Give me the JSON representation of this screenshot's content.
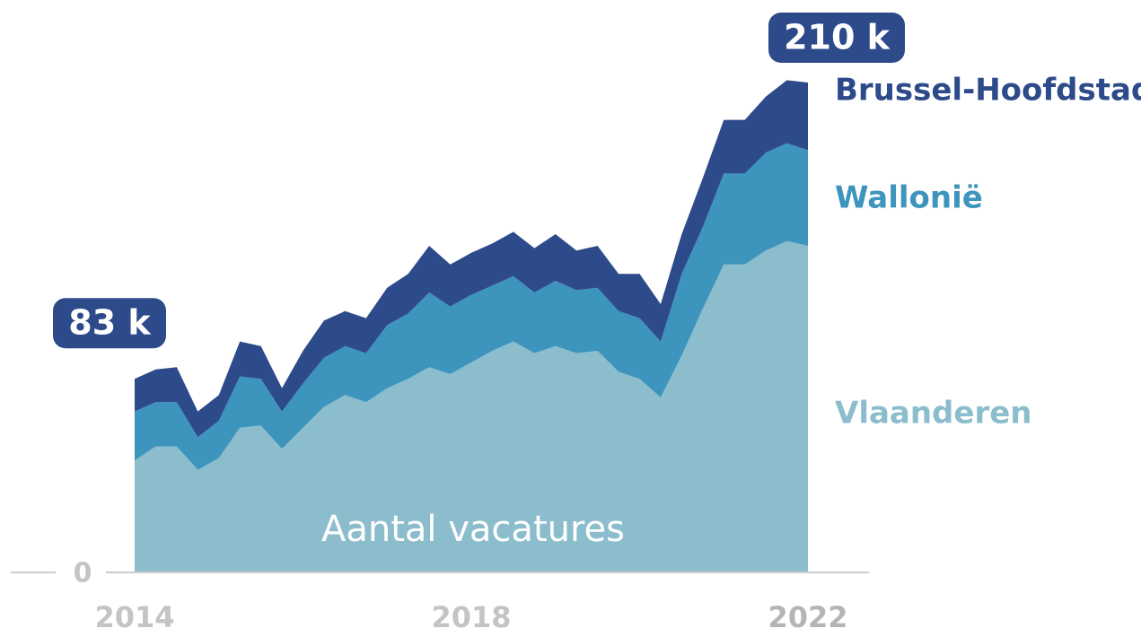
{
  "chart_data": {
    "type": "stacked_area",
    "axis_label": "Aantal vacatures",
    "categories": [
      "2014",
      null,
      null,
      null,
      null,
      null,
      null,
      null,
      null,
      null,
      null,
      null,
      null,
      null,
      null,
      null,
      "2018",
      null,
      null,
      null,
      null,
      null,
      null,
      null,
      null,
      null,
      null,
      null,
      null,
      null,
      null,
      null,
      "2022"
    ],
    "series": [
      {
        "name": "Vlaanderen",
        "color": "#8bbdcc",
        "values": [
          48,
          54,
          54,
          44,
          49,
          62,
          63,
          53,
          62,
          71,
          76,
          73,
          79,
          83,
          88,
          85,
          90,
          95,
          99,
          94,
          97,
          94,
          95,
          86,
          83,
          75,
          93,
          113,
          132,
          132,
          138,
          142,
          140
        ]
      },
      {
        "name": "Wallonië",
        "color": "#3d94bd",
        "values": [
          21,
          19,
          19,
          14,
          16,
          22,
          20,
          16,
          19,
          21,
          21,
          21,
          27,
          28,
          32,
          29,
          29,
          28,
          28,
          26,
          28,
          27,
          27,
          26,
          26,
          24,
          35,
          35,
          39,
          39,
          42,
          42,
          41
        ]
      },
      {
        "name": "Brussel-Hoofdstad",
        "color": "#2d4a8a",
        "values": [
          14,
          14,
          15,
          11,
          11,
          15,
          14,
          10,
          14,
          16,
          15,
          15,
          16,
          17,
          20,
          18,
          18,
          18,
          19,
          19,
          20,
          17,
          18,
          16,
          19,
          16,
          17,
          21,
          23,
          23,
          24,
          27,
          29
        ]
      }
    ],
    "annotations": [
      {
        "label": "83 k",
        "value": 83
      },
      {
        "label": "210 k",
        "value": 210
      }
    ],
    "ylim": [
      0,
      240
    ],
    "yticks": [
      0
    ]
  }
}
